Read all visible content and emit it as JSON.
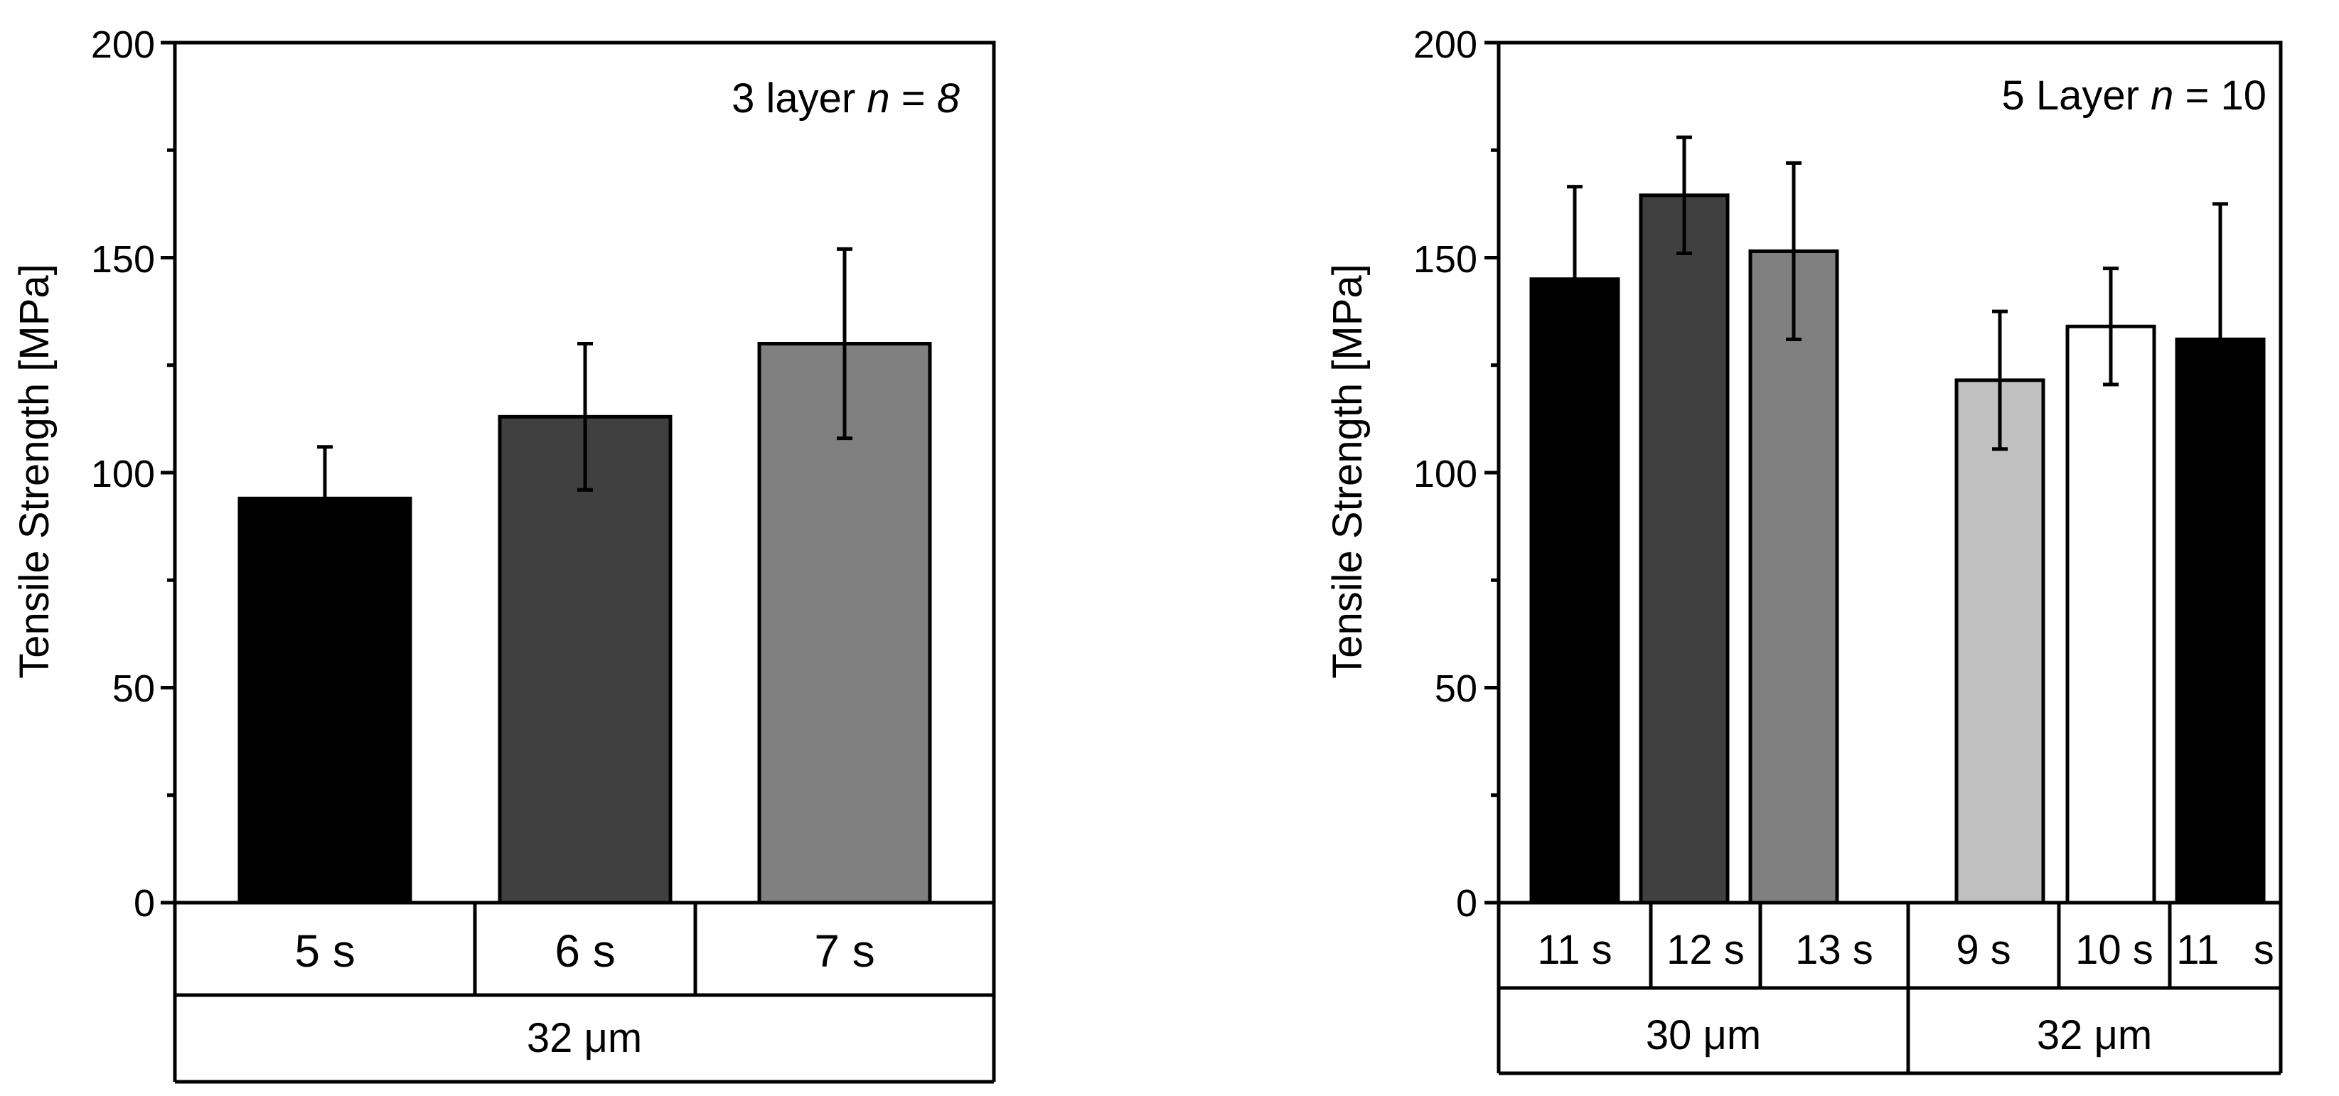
{
  "chart_data": [
    {
      "type": "bar",
      "title": "",
      "annotation_text": "3 layer ",
      "annotation_n": "n",
      "annotation_eq": " = ",
      "annotation_val": "8",
      "xlabel": "",
      "ylabel": "Tensile Strength [MPa]",
      "ylim": [
        0,
        200
      ],
      "yticks": [
        "0",
        "50",
        "100",
        "150",
        "200"
      ],
      "categories": [
        "5 s",
        "6 s",
        "7 s"
      ],
      "values": [
        94,
        113,
        130
      ],
      "errors": [
        12,
        17,
        22
      ],
      "bar_colors": [
        "#000000",
        "#404040",
        "#808080"
      ],
      "groups": [
        {
          "label": "32 μm",
          "count": 3
        }
      ]
    },
    {
      "type": "bar",
      "title": "",
      "annotation_text": "5 Layer ",
      "annotation_n": "n",
      "annotation_eq": " = ",
      "annotation_val": "10",
      "xlabel": "",
      "ylabel": "Tensile Strength [MPa]",
      "ylim": [
        0,
        200
      ],
      "yticks": [
        "0",
        "50",
        "100",
        "150",
        "200"
      ],
      "categories": [
        "11 s",
        "12 s",
        "13 s",
        "9 s",
        "10 s",
        "11   s"
      ],
      "values": [
        145,
        164.5,
        151.5,
        121.5,
        134,
        131
      ],
      "errors": [
        21.5,
        13.5,
        20.5,
        16,
        13.5,
        31.5
      ],
      "bar_colors": [
        "#000000",
        "#404040",
        "#808080",
        "#c0c0c0",
        "#ffffff",
        "#000000"
      ],
      "groups": [
        {
          "label": "30 μm",
          "count": 3
        },
        {
          "label": "32 μm",
          "count": 3
        }
      ]
    }
  ]
}
